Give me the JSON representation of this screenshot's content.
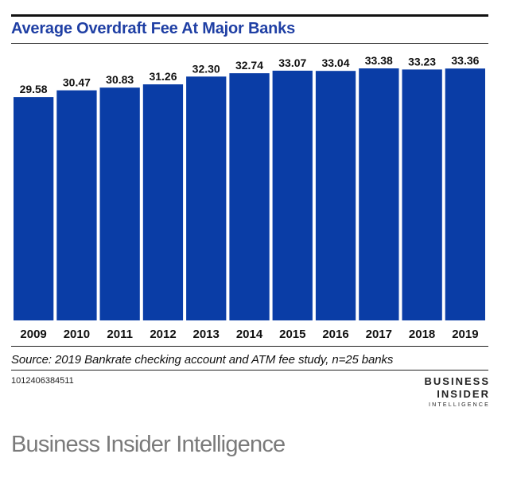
{
  "chart_data": {
    "type": "bar",
    "title": "Average Overdraft Fee At Major Banks",
    "categories": [
      "2009",
      "2010",
      "2011",
      "2012",
      "2013",
      "2014",
      "2015",
      "2016",
      "2017",
      "2018",
      "2019"
    ],
    "values": [
      29.58,
      30.47,
      30.83,
      31.26,
      32.3,
      32.74,
      33.07,
      33.04,
      33.38,
      33.23,
      33.36
    ],
    "value_labels": [
      "29.58",
      "30.47",
      "30.83",
      "31.26",
      "32.30",
      "32.74",
      "33.07",
      "33.04",
      "33.38",
      "33.23",
      "33.36"
    ],
    "xlabel": "",
    "ylabel": "",
    "ylim": [
      0,
      33.38
    ],
    "bar_color": "#0a3da6",
    "grid": false
  },
  "source": "Source: 2019 Bankrate checking account and ATM fee study, n=25 banks",
  "chart_id": "1012406384511",
  "logo": {
    "line1": "BUSINESS",
    "line2": "INSIDER",
    "line3": "INTELLIGENCE"
  },
  "caption": "Business Insider Intelligence"
}
